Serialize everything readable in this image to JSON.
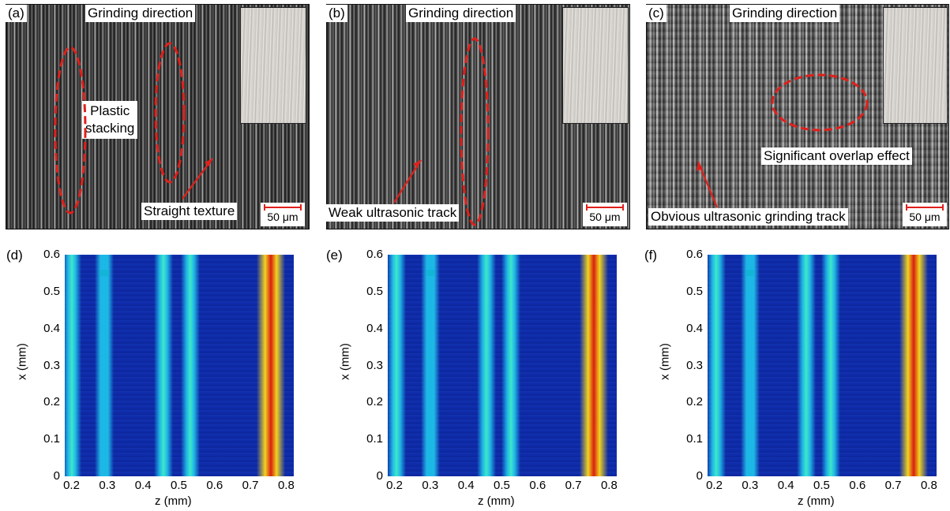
{
  "panels_top": [
    {
      "id": "a",
      "panel_label": "(a)",
      "header": "Grinding direction",
      "scale": "50 μm",
      "callouts": [
        {
          "key": "plastic",
          "text": "Plastic\nstacking"
        },
        {
          "key": "straight",
          "text": "Straight texture"
        }
      ]
    },
    {
      "id": "b",
      "panel_label": "(b)",
      "header": "Grinding direction",
      "scale": "50 μm",
      "callouts": [
        {
          "key": "weak",
          "text": "Weak ultrasonic track"
        }
      ]
    },
    {
      "id": "c",
      "panel_label": "(c)",
      "header": "Grinding direction",
      "scale": "50 μm",
      "callouts": [
        {
          "key": "overlap",
          "text": "Significant overlap effect"
        },
        {
          "key": "obvious",
          "text": "Obvious ultrasonic grinding track"
        }
      ]
    }
  ],
  "chart_data": [
    {
      "type": "heatmap",
      "panel_label": "(d)",
      "xlabel": "z (mm)",
      "ylabel": "x (mm)",
      "xlim": [
        0.18,
        0.82
      ],
      "ylim": [
        0,
        0.6
      ],
      "x_ticks": [
        0.2,
        0.3,
        0.4,
        0.5,
        0.6,
        0.7,
        0.8
      ],
      "y_ticks": [
        0,
        0.1,
        0.2,
        0.3,
        0.4,
        0.5,
        0.6
      ],
      "ridges": [
        {
          "z": 0.2,
          "intensity": 0.62
        },
        {
          "z": 0.29,
          "intensity": 0.48
        },
        {
          "z": 0.455,
          "intensity": 0.55
        },
        {
          "z": 0.53,
          "intensity": 0.6
        },
        {
          "z": 0.755,
          "intensity": 1.0
        }
      ]
    },
    {
      "type": "heatmap",
      "panel_label": "(e)",
      "xlabel": "z (mm)",
      "ylabel": "x (mm)",
      "xlim": [
        0.18,
        0.82
      ],
      "ylim": [
        0,
        0.6
      ],
      "x_ticks": [
        0.2,
        0.3,
        0.4,
        0.5,
        0.6,
        0.7,
        0.8
      ],
      "y_ticks": [
        0,
        0.1,
        0.2,
        0.3,
        0.4,
        0.5,
        0.6
      ],
      "ridges": [
        {
          "z": 0.205,
          "intensity": 0.62
        },
        {
          "z": 0.3,
          "intensity": 0.5
        },
        {
          "z": 0.455,
          "intensity": 0.58
        },
        {
          "z": 0.525,
          "intensity": 0.66
        },
        {
          "z": 0.755,
          "intensity": 1.0
        }
      ]
    },
    {
      "type": "heatmap",
      "panel_label": "(f)",
      "xlabel": "z (mm)",
      "ylabel": "x (mm)",
      "xlim": [
        0.18,
        0.82
      ],
      "ylim": [
        0,
        0.6
      ],
      "x_ticks": [
        0.2,
        0.3,
        0.4,
        0.5,
        0.6,
        0.7,
        0.8
      ],
      "y_ticks": [
        0,
        0.1,
        0.2,
        0.3,
        0.4,
        0.5,
        0.6
      ],
      "ridges": [
        {
          "z": 0.205,
          "intensity": 0.66
        },
        {
          "z": 0.3,
          "intensity": 0.52
        },
        {
          "z": 0.455,
          "intensity": 0.6
        },
        {
          "z": 0.525,
          "intensity": 0.7
        },
        {
          "z": 0.755,
          "intensity": 1.0
        }
      ]
    }
  ],
  "colors": {
    "annotation_red": "#e0201b",
    "heatmap_low": "#0e2aa8",
    "heatmap_high": "#b50f0f"
  }
}
